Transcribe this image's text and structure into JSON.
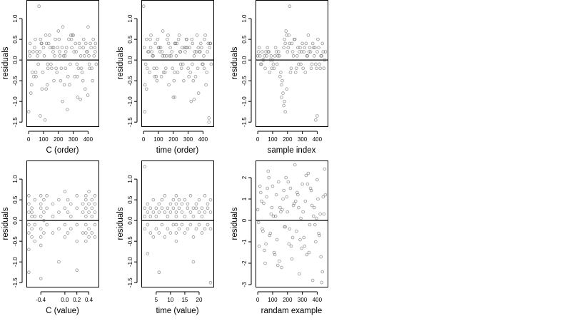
{
  "chart_data": [
    {
      "type": "scatter",
      "xlabel": "C (order)",
      "ylabel": "residuals",
      "xlim": [
        -15,
        470
      ],
      "ylim": [
        -1.6,
        1.45
      ],
      "xticks": [
        0,
        100,
        200,
        300,
        400
      ],
      "xtick_labels": [
        "0",
        "100",
        "200",
        "300",
        "400"
      ],
      "yticks": [
        -1.5,
        -1.0,
        -0.5,
        0.0,
        0.5,
        1.0
      ],
      "ytick_labels": [
        "-1.5",
        "-1.0",
        "-0.5",
        "0.0",
        "0.5",
        "1.0"
      ],
      "hline": 0,
      "x": [
        0,
        10,
        20,
        30,
        40,
        50,
        60,
        70,
        80,
        90,
        100,
        110,
        120,
        130,
        140,
        150,
        160,
        170,
        180,
        190,
        200,
        210,
        220,
        230,
        240,
        250,
        260,
        270,
        280,
        290,
        300,
        310,
        320,
        330,
        340,
        350,
        360,
        370,
        380,
        390,
        400,
        410,
        420,
        430,
        440,
        450,
        5,
        25,
        45,
        65,
        85,
        105,
        125,
        145,
        165,
        185,
        205,
        225,
        245,
        265,
        285,
        305,
        325,
        345,
        365,
        385,
        405,
        425,
        445,
        15,
        55,
        95,
        135,
        175,
        215,
        255,
        295,
        335,
        375,
        415,
        455,
        35,
        75,
        115,
        155,
        195,
        235,
        275,
        315,
        355,
        395,
        435,
        8,
        48,
        88,
        128,
        168,
        208,
        248,
        288,
        328,
        368,
        408,
        448,
        78,
        118,
        228,
        348,
        398
      ],
      "y": [
        -1.25,
        0.4,
        -0.6,
        0.2,
        0.3,
        -0.4,
        0.1,
        1.3,
        0.5,
        -0.7,
        0.3,
        -1.45,
        0.4,
        -0.2,
        0.6,
        -0.1,
        0.3,
        -0.5,
        0.5,
        -0.3,
        0.7,
        0.1,
        -0.2,
        0.8,
        -0.6,
        0.2,
        -1.2,
        0.5,
        -0.1,
        0.3,
        0.6,
        -0.4,
        0.2,
        -0.9,
        0.4,
        0.1,
        -0.3,
        0.5,
        -0.7,
        0.2,
        0.8,
        -0.2,
        0.3,
        -0.5,
        0.1,
        0.4,
        0.2,
        -0.3,
        0.5,
        -0.1,
        0.4,
        0.1,
        -0.6,
        0.3,
        0.2,
        -0.2,
        0.5,
        0.3,
        0.1,
        -0.4,
        0.6,
        0.2,
        -0.1,
        0.3,
        -0.5,
        0.4,
        0.1,
        -0.2,
        0.3,
        -0.8,
        0.2,
        -0.3,
        0.4,
        0.1,
        -0.5,
        0.3,
        0.6,
        -0.2,
        0.1,
        0.4,
        -0.1,
        -0.4,
        0.2,
        0.6,
        -0.2,
        0.3,
        0.1,
        -0.6,
        0.4,
        -0.2,
        0.2,
        0.5,
        0.1,
        -0.3,
        0.4,
        -0.1,
        0.3,
        0.2,
        -0.2,
        0.5,
        -0.4,
        0.3,
        -0.1,
        0.2,
        -1.35,
        -0.7,
        -1.0,
        -0.95,
        -0.85
      ]
    },
    {
      "type": "scatter",
      "xlabel": "time (order)",
      "ylabel": "residuals",
      "xlim": [
        -15,
        470
      ],
      "ylim": [
        -1.6,
        1.45
      ],
      "xticks": [
        0,
        100,
        200,
        300,
        400
      ],
      "xtick_labels": [
        "0",
        "100",
        "200",
        "300",
        "400"
      ],
      "yticks": [
        -1.5,
        -1.0,
        -0.5,
        0.0,
        0.5,
        1.0
      ],
      "ytick_labels": [
        "-1.5",
        "-1.0",
        "-0.5",
        "0.0",
        "0.5",
        "1.0"
      ],
      "hline": 0,
      "x": [
        0,
        10,
        20,
        30,
        40,
        50,
        60,
        70,
        80,
        90,
        100,
        110,
        120,
        130,
        140,
        150,
        160,
        170,
        180,
        190,
        200,
        210,
        220,
        230,
        240,
        250,
        260,
        270,
        280,
        290,
        300,
        310,
        320,
        330,
        340,
        350,
        360,
        370,
        380,
        390,
        400,
        410,
        420,
        430,
        440,
        450,
        5,
        25,
        45,
        65,
        85,
        105,
        125,
        145,
        165,
        185,
        205,
        225,
        245,
        265,
        285,
        305,
        325,
        345,
        365,
        385,
        405,
        425,
        445,
        15,
        55,
        95,
        135,
        175,
        215,
        255,
        295,
        335,
        375,
        415,
        455,
        35,
        75,
        115,
        155,
        195,
        235,
        275,
        315,
        355,
        395,
        435,
        8,
        48,
        88,
        128,
        168,
        208,
        248,
        288,
        328,
        368,
        408,
        448,
        20,
        210,
        340,
        440
      ],
      "y": [
        1.3,
        -0.6,
        0.5,
        0.2,
        -0.3,
        0.6,
        0.1,
        -0.2,
        0.4,
        -0.5,
        0.3,
        0.2,
        -0.4,
        0.7,
        0.1,
        -0.2,
        0.5,
        -0.6,
        0.3,
        0.2,
        -0.9,
        0.4,
        0.1,
        -0.3,
        0.6,
        -0.1,
        0.3,
        -0.5,
        0.2,
        0.5,
        -0.2,
        0.3,
        -1.0,
        0.4,
        0.1,
        -0.4,
        0.6,
        -0.8,
        0.2,
        0.3,
        -0.1,
        0.5,
        -0.6,
        0.2,
        -1.5,
        0.4,
        0.3,
        -0.2,
        0.5,
        0.1,
        -0.4,
        0.3,
        0.2,
        -0.3,
        0.6,
        0.1,
        -0.5,
        0.4,
        0.2,
        -0.1,
        0.3,
        -0.4,
        0.5,
        0.2,
        -0.2,
        0.4,
        0.1,
        -0.3,
        0.3,
        -0.1,
        0.2,
        0.5,
        -0.3,
        0.1,
        0.4,
        -0.2,
        0.3,
        -0.5,
        0.2,
        0.6,
        -0.1,
        0.2,
        -0.4,
        0.3,
        0.1,
        -0.2,
        0.5,
        0.3,
        -0.3,
        0.2,
        -0.1,
        0.4,
        -1.25,
        0.3,
        -0.2,
        0.1,
        0.4,
        -0.3,
        0.2,
        0.5,
        -0.1,
        0.3,
        -0.2,
        0.4,
        -0.7,
        -0.9,
        -0.95,
        -1.4
      ]
    },
    {
      "type": "scatter",
      "xlabel": "sample index",
      "ylabel": "residuals",
      "xlim": [
        -15,
        470
      ],
      "ylim": [
        -1.6,
        1.45
      ],
      "xticks": [
        0,
        100,
        200,
        300,
        400
      ],
      "xtick_labels": [
        "0",
        "100",
        "200",
        "300",
        "400"
      ],
      "yticks": [
        -1.5,
        -1.0,
        -0.5,
        0.0,
        0.5,
        1.0
      ],
      "ytick_labels": [
        "-1.5",
        "-1.0",
        "-0.5",
        "0.0",
        "0.5",
        "1.0"
      ],
      "hline": 0,
      "x": [
        0,
        10,
        20,
        30,
        40,
        50,
        60,
        70,
        80,
        90,
        100,
        110,
        120,
        130,
        140,
        150,
        160,
        170,
        180,
        190,
        200,
        210,
        220,
        230,
        240,
        250,
        260,
        270,
        280,
        290,
        300,
        310,
        320,
        330,
        340,
        350,
        360,
        370,
        380,
        390,
        400,
        410,
        420,
        430,
        440,
        450,
        5,
        25,
        45,
        65,
        85,
        105,
        125,
        145,
        165,
        185,
        205,
        225,
        245,
        265,
        285,
        305,
        325,
        345,
        365,
        385,
        405,
        425,
        445,
        15,
        55,
        95,
        135,
        175,
        215,
        255,
        295,
        335,
        375,
        415,
        455,
        35,
        75,
        115,
        155,
        195,
        235,
        275,
        315,
        355,
        395,
        435,
        160,
        175,
        185,
        195,
        180,
        215,
        390,
        400
      ],
      "y": [
        0.1,
        0.3,
        -0.1,
        0.2,
        0.0,
        -0.2,
        0.1,
        0.2,
        -0.3,
        0.1,
        0.0,
        -0.2,
        0.3,
        -0.1,
        0.2,
        -0.4,
        -0.6,
        -0.8,
        0.5,
        0.7,
        0.2,
        0.6,
        -0.3,
        0.4,
        0.1,
        0.5,
        -0.2,
        0.3,
        0.2,
        -0.1,
        0.4,
        0.2,
        -0.3,
        0.1,
        0.6,
        0.3,
        -0.2,
        0.4,
        0.1,
        -0.1,
        0.2,
        0.3,
        -0.2,
        0.1,
        0.2,
        0.0,
        0.2,
        -0.1,
        0.1,
        0.3,
        0.0,
        -0.1,
        0.2,
        0.1,
        -0.5,
        0.4,
        0.3,
        -0.2,
        0.5,
        0.1,
        0.3,
        -0.2,
        0.4,
        0.2,
        -0.1,
        0.3,
        0.5,
        0.1,
        -0.2,
        0.1,
        0.2,
        -0.2,
        0.1,
        0.3,
        0.4,
        -0.3,
        0.2,
        0.1,
        0.3,
        -0.1,
        0.2,
        0.0,
        0.2,
        0.1,
        -0.3,
        0.6,
        0.2,
        -0.1,
        0.3,
        0.2,
        -0.2,
        0.4,
        -0.9,
        -1.1,
        -1.25,
        -0.7,
        -1.0,
        1.3,
        -1.45,
        -1.35
      ]
    },
    {
      "type": "scatter",
      "xlabel": "C (value)",
      "ylabel": "residuals",
      "xlim": [
        -0.64,
        0.56
      ],
      "ylim": [
        -1.6,
        1.45
      ],
      "xticks": [
        -0.4,
        0.0,
        0.2,
        0.4
      ],
      "xtick_labels": [
        "-0.4",
        "0.0",
        "0.2",
        "0.4"
      ],
      "yticks": [
        -1.5,
        -1.0,
        -0.5,
        0.0,
        0.5,
        1.0
      ],
      "ytick_labels": [
        "-1.5",
        "-1.0",
        "-0.5",
        "0.0",
        "0.5",
        "1.0"
      ],
      "hline": 0,
      "x": [
        -0.6,
        -0.6,
        -0.6,
        -0.6,
        -0.6,
        -0.6,
        -0.55,
        -0.55,
        -0.55,
        -0.55,
        -0.55,
        -0.5,
        -0.5,
        -0.5,
        -0.5,
        -0.4,
        -0.4,
        -0.4,
        -0.4,
        -0.4,
        -0.4,
        -0.4,
        -0.35,
        -0.35,
        -0.35,
        -0.35,
        -0.3,
        -0.3,
        -0.3,
        -0.2,
        -0.2,
        -0.2,
        -0.1,
        -0.1,
        -0.1,
        0.0,
        0.0,
        0.0,
        0.0,
        0.05,
        0.05,
        0.05,
        0.1,
        0.1,
        0.1,
        0.2,
        0.2,
        0.2,
        0.2,
        0.3,
        0.3,
        0.3,
        0.35,
        0.35,
        0.35,
        0.35,
        0.35,
        0.35,
        0.35,
        0.4,
        0.4,
        0.4,
        0.4,
        0.4,
        0.45,
        0.45,
        0.45,
        0.45,
        0.5,
        0.5,
        0.5,
        0.5,
        0.5,
        -0.6,
        -0.4,
        -0.1,
        0.2
      ],
      "y": [
        0.4,
        0.2,
        -0.1,
        -0.3,
        -0.7,
        0.6,
        0.1,
        -0.4,
        0.3,
        -0.2,
        0.2,
        0.5,
        -0.1,
        0.1,
        -0.5,
        0.4,
        0.3,
        0.1,
        -0.2,
        -0.4,
        0.6,
        -0.6,
        0.2,
        -0.3,
        0.5,
        0.0,
        0.3,
        -0.1,
        0.6,
        0.4,
        -0.3,
        0.1,
        0.5,
        -0.2,
        0.2,
        0.7,
        0.3,
        -0.1,
        -0.4,
        0.2,
        0.5,
        -0.3,
        0.4,
        0.1,
        -0.2,
        0.6,
        0.3,
        -0.1,
        -0.5,
        0.4,
        0.2,
        -0.3,
        0.5,
        0.3,
        0.1,
        -0.1,
        -0.3,
        -0.5,
        0.6,
        0.4,
        0.2,
        -0.2,
        -0.4,
        0.7,
        0.3,
        0.1,
        -0.3,
        0.5,
        0.6,
        0.2,
        -0.1,
        -0.4,
        0.4,
        -1.25,
        -1.4,
        -1.0,
        -1.2
      ]
    },
    {
      "type": "scatter",
      "xlabel": "time (value)",
      "ylabel": "residuals",
      "xlim": [
        -0.2,
        25
      ],
      "ylim": [
        -1.6,
        1.45
      ],
      "xticks": [
        5,
        10,
        15,
        20
      ],
      "xtick_labels": [
        "5",
        "10",
        "15",
        "20"
      ],
      "yticks": [
        -1.5,
        -1.0,
        -0.5,
        0.0,
        0.5,
        1.0
      ],
      "ytick_labels": [
        "-1.5",
        "-1.0",
        "-0.5",
        "0.0",
        "0.5",
        "1.0"
      ],
      "hline": 0,
      "x": [
        1,
        1,
        1,
        1,
        2,
        2,
        2,
        3,
        3,
        3,
        4,
        4,
        4,
        5,
        5,
        5,
        6,
        6,
        6,
        7,
        7,
        7,
        8,
        8,
        8,
        9,
        9,
        9,
        10,
        10,
        10,
        11,
        11,
        11,
        12,
        12,
        12,
        12,
        12,
        12,
        12,
        13,
        13,
        13,
        14,
        14,
        14,
        15,
        15,
        15,
        16,
        16,
        16,
        17,
        17,
        17,
        18,
        18,
        18,
        19,
        19,
        19,
        20,
        20,
        20,
        21,
        21,
        21,
        22,
        22,
        22,
        23,
        23,
        23,
        24,
        24,
        24,
        2,
        6,
        18,
        24
      ],
      "y": [
        1.3,
        0.3,
        -0.2,
        0.1,
        0.4,
        -0.1,
        0.2,
        0.3,
        -0.3,
        0.1,
        0.2,
        -0.4,
        0.5,
        0.3,
        -0.2,
        0.1,
        0.4,
        -0.3,
        0.2,
        0.5,
        -0.1,
        0.3,
        0.2,
        -0.4,
        0.6,
        0.3,
        -0.2,
        0.1,
        0.4,
        -0.3,
        0.2,
        0.5,
        -0.1,
        0.3,
        0.6,
        0.4,
        0.2,
        -0.1,
        -0.3,
        -0.5,
        0.1,
        0.3,
        -0.2,
        0.5,
        0.4,
        -0.1,
        0.2,
        0.5,
        -0.3,
        0.1,
        0.3,
        -0.2,
        0.4,
        0.6,
        -0.1,
        0.2,
        0.3,
        -0.4,
        0.1,
        0.4,
        -0.2,
        0.3,
        0.5,
        -0.1,
        0.2,
        0.3,
        -0.3,
        0.1,
        0.6,
        0.2,
        -0.2,
        0.4,
        -0.1,
        0.3,
        0.5,
        0.2,
        -0.2,
        -0.8,
        -1.25,
        -1.0,
        -1.5
      ]
    },
    {
      "type": "scatter",
      "xlabel": "randam example",
      "ylabel": "residuals",
      "xlim": [
        -15,
        470
      ],
      "ylim": [
        -3.1,
        2.8
      ],
      "xticks": [
        0,
        100,
        200,
        300,
        400
      ],
      "xtick_labels": [
        "0",
        "100",
        "200",
        "300",
        "400"
      ],
      "yticks": [
        -3,
        -2,
        -1,
        0,
        1,
        2
      ],
      "ytick_labels": [
        "-3",
        "-2",
        "-1",
        "0",
        "1",
        "2"
      ],
      "hline": 0,
      "x": [
        0,
        10,
        20,
        30,
        40,
        50,
        60,
        70,
        80,
        90,
        100,
        110,
        120,
        130,
        140,
        150,
        160,
        170,
        180,
        190,
        200,
        210,
        220,
        230,
        240,
        250,
        260,
        270,
        280,
        290,
        300,
        310,
        320,
        330,
        340,
        350,
        360,
        370,
        380,
        390,
        400,
        410,
        420,
        430,
        440,
        450,
        5,
        25,
        45,
        65,
        85,
        105,
        125,
        145,
        165,
        185,
        205,
        225,
        245,
        265,
        285,
        305,
        325,
        345,
        365,
        385,
        405,
        425,
        445,
        15,
        55,
        95,
        135,
        175,
        215,
        255,
        295,
        335,
        375,
        415,
        455,
        35,
        75,
        115,
        155,
        195,
        235,
        275,
        315,
        355,
        395,
        435
      ],
      "y": [
        0.5,
        -1.2,
        1.3,
        -0.4,
        0.8,
        -2.0,
        1.1,
        2.3,
        -0.7,
        0.3,
        1.6,
        -1.5,
        0.2,
        -0.9,
        1.8,
        0.6,
        -2.2,
        1.0,
        -0.3,
        2.0,
        0.4,
        -1.1,
        1.5,
        -1.8,
        0.7,
        2.6,
        -0.5,
        1.2,
        -2.5,
        0.1,
        1.7,
        -0.8,
        0.9,
        -1.6,
        2.2,
        -0.2,
        1.4,
        -2.8,
        0.6,
        -1.0,
        1.9,
        -0.6,
        0.3,
        -2.9,
        1.1,
        2.4,
        -0.1,
        0.9,
        -1.4,
        1.5,
        -0.6,
        0.2,
        1.2,
        -1.9,
        0.5,
        -0.3,
        1.8,
        -1.2,
        0.8,
        1.3,
        -0.9,
        0.4,
        2.1,
        -1.5,
        0.7,
        -0.2,
        1.0,
        -1.7,
        0.3,
        1.6,
        -1.1,
        0.6,
        -2.1,
        1.4,
        -0.4,
        0.9,
        -1.3,
        1.7,
        0.2,
        -0.7,
        1.2,
        -0.5,
        2.0,
        -1.6,
        0.4,
        1.1,
        -0.8,
        0.6,
        -1.2,
        1.5,
        0.1,
        -2.4
      ]
    }
  ]
}
